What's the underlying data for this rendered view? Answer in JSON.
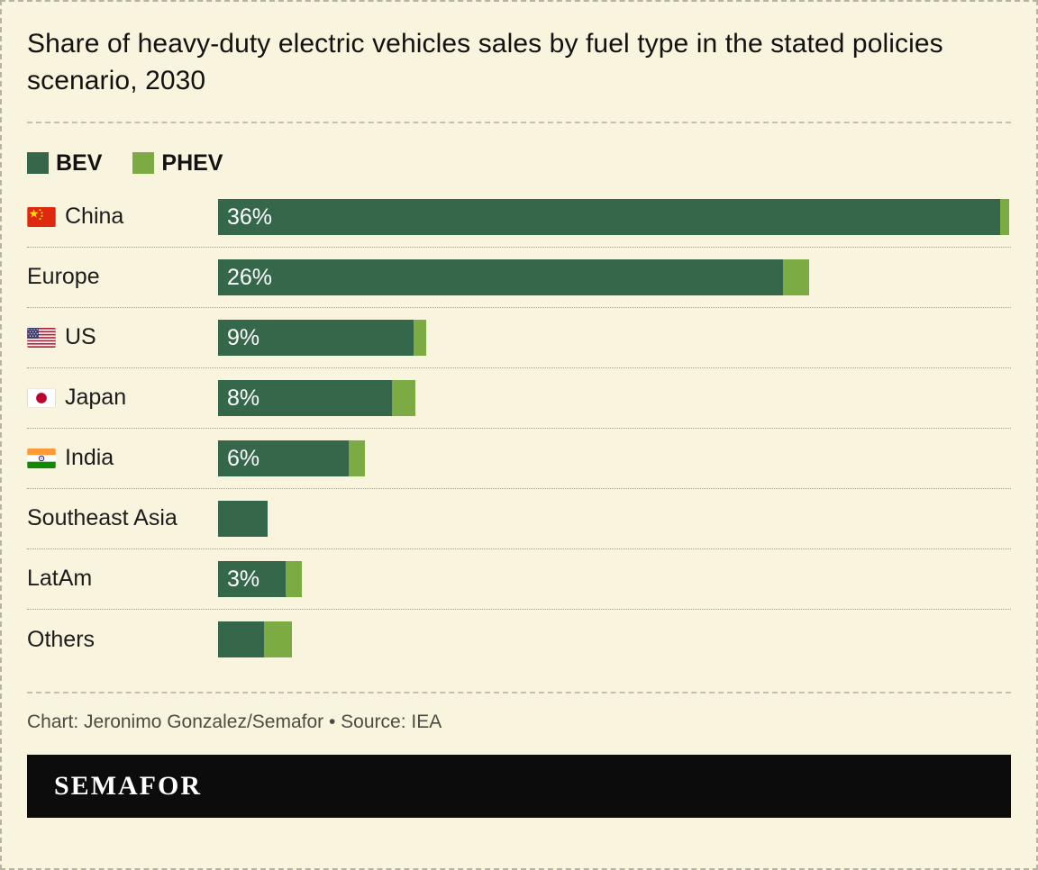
{
  "title": "Share of heavy-duty electric vehicles sales by fuel type in the stated policies scenario, 2030",
  "credit": "Chart: Jeronimo Gonzalez/Semafor • Source: IEA",
  "brand": "SEMAFOR",
  "colors": {
    "bev": "#35684a",
    "phev": "#7cab44",
    "background": "#f9f4dd",
    "brand_bar": "#0c0c0c"
  },
  "chart_data": {
    "type": "bar",
    "orientation": "horizontal",
    "stacked": true,
    "title": "Share of heavy-duty electric vehicles sales by fuel type in the stated policies scenario, 2030",
    "unit": "%",
    "legend": [
      "BEV",
      "PHEV"
    ],
    "legend_position": "top",
    "grid": false,
    "scale_max": 36.5,
    "rows": [
      {
        "country": "China",
        "flag": "china",
        "bev": 36,
        "phev": 0.4,
        "value_label": "36%"
      },
      {
        "country": "Europe",
        "flag": "",
        "bev": 26,
        "phev": 1.2,
        "value_label": "26%"
      },
      {
        "country": "US",
        "flag": "us",
        "bev": 9,
        "phev": 0.6,
        "value_label": "9%"
      },
      {
        "country": "Japan",
        "flag": "japan",
        "bev": 8,
        "phev": 1.1,
        "value_label": "8%"
      },
      {
        "country": "India",
        "flag": "india",
        "bev": 6,
        "phev": 0.75,
        "value_label": "6%"
      },
      {
        "country": "Southeast Asia",
        "flag": "",
        "bev": 2.3,
        "phev": 0,
        "value_label": ""
      },
      {
        "country": "LatAm",
        "flag": "",
        "bev": 3.1,
        "phev": 0.75,
        "value_label": "3%"
      },
      {
        "country": "Others",
        "flag": "",
        "bev": 2.1,
        "phev": 1.3,
        "value_label": ""
      }
    ]
  }
}
